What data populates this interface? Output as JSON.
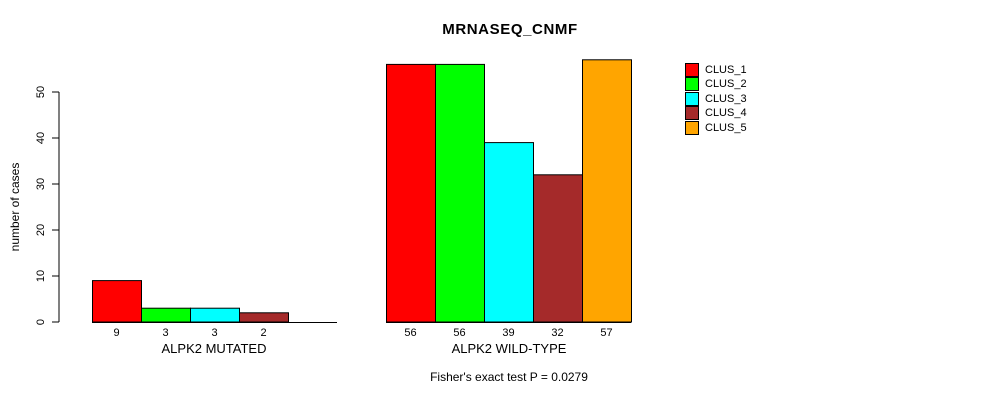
{
  "title": "MRNASEQ_CNMF",
  "y_axis": {
    "label": "number of cases",
    "ticks": [
      "0",
      "10",
      "20",
      "30",
      "40",
      "50"
    ]
  },
  "groups": [
    {
      "label": "ALPK2 MUTATED",
      "bar_labels": [
        "9",
        "3",
        "3",
        "2",
        null
      ]
    },
    {
      "label": "ALPK2 WILD-TYPE",
      "bar_labels": [
        "56",
        "56",
        "39",
        "32",
        "57"
      ]
    }
  ],
  "legend": [
    {
      "label": "CLUS_1",
      "color": "#FF0000"
    },
    {
      "label": "CLUS_2",
      "color": "#00FF00"
    },
    {
      "label": "CLUS_3",
      "color": "#00FFFF"
    },
    {
      "label": "CLUS_4",
      "color": "#A52A2A"
    },
    {
      "label": "CLUS_5",
      "color": "#FFA500"
    }
  ],
  "footer": "Fisher's exact test P = 0.0279",
  "chart_data": {
    "type": "bar",
    "title": "MRNASEQ_CNMF",
    "xlabel": "",
    "ylabel": "number of cases",
    "ylim": [
      0,
      57
    ],
    "yticks": [
      0,
      10,
      20,
      30,
      40,
      50
    ],
    "grid": false,
    "legend_position": "right",
    "categories": [
      "ALPK2 MUTATED",
      "ALPK2 WILD-TYPE"
    ],
    "series": [
      {
        "name": "CLUS_1",
        "color": "#FF0000",
        "values": [
          9,
          56
        ]
      },
      {
        "name": "CLUS_2",
        "color": "#00FF00",
        "values": [
          3,
          56
        ]
      },
      {
        "name": "CLUS_3",
        "color": "#00FFFF",
        "values": [
          3,
          39
        ]
      },
      {
        "name": "CLUS_4",
        "color": "#A52A2A",
        "values": [
          2,
          32
        ]
      },
      {
        "name": "CLUS_5",
        "color": "#FFA500",
        "values": [
          0,
          57
        ]
      }
    ],
    "bar_value_labels": [
      [
        "9",
        "3",
        "3",
        "2",
        null
      ],
      [
        "56",
        "56",
        "39",
        "32",
        "57"
      ]
    ],
    "annotation": "Fisher's exact test P = 0.0279",
    "axis_color": "#000000",
    "bar_border_color": "#000000"
  }
}
